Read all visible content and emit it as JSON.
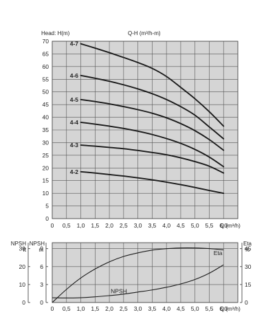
{
  "chart_data": [
    {
      "type": "line",
      "title": "Q-H (m³/h-m)",
      "ylabel": "Head: H(m)",
      "xlabel": "Q (m³/h)",
      "xlim": [
        0,
        6.5
      ],
      "ylim": [
        0,
        70
      ],
      "grid": true,
      "x_ticks": [
        "0",
        "0,5",
        "1,0",
        "1,5",
        "2,0",
        "2,5",
        "3,0",
        "3,5",
        "4,0",
        "4,5",
        "5,0",
        "5,5",
        "6,0"
      ],
      "y_ticks": [
        "0",
        "5",
        "10",
        "15",
        "20",
        "25",
        "30",
        "35",
        "40",
        "45",
        "50",
        "55",
        "60",
        "65",
        "70"
      ],
      "series": [
        {
          "name": "4-7",
          "x": [
            1.0,
            1.5,
            2.0,
            2.5,
            3.0,
            3.5,
            4.0,
            4.5,
            5.0,
            5.5,
            6.0
          ],
          "y": [
            69,
            67.3,
            65.5,
            63.6,
            61.6,
            59.3,
            56.1,
            51.8,
            47.3,
            42.2,
            36.5
          ]
        },
        {
          "name": "4-6",
          "x": [
            1.0,
            1.5,
            2.0,
            2.5,
            3.0,
            3.5,
            4.0,
            4.5,
            5.0,
            5.5,
            6.0
          ],
          "y": [
            56.5,
            55.4,
            54.2,
            52.8,
            51.2,
            49.3,
            47.0,
            44.2,
            40.8,
            36.2,
            31.5
          ]
        },
        {
          "name": "4-5",
          "x": [
            1.0,
            1.5,
            2.0,
            2.5,
            3.0,
            3.5,
            4.0,
            4.5,
            5.0,
            5.5,
            6.0
          ],
          "y": [
            47.0,
            46.2,
            45.3,
            44.2,
            43.0,
            41.6,
            39.8,
            37.5,
            34.7,
            31.2,
            27.0
          ]
        },
        {
          "name": "4-4",
          "x": [
            1.0,
            1.5,
            2.0,
            2.5,
            3.0,
            3.5,
            4.0,
            4.5,
            5.0,
            5.5,
            6.0
          ],
          "y": [
            38.0,
            37.3,
            36.5,
            35.6,
            34.5,
            33.2,
            31.6,
            29.7,
            27.3,
            24.3,
            20.5
          ]
        },
        {
          "name": "4-3",
          "x": [
            1.0,
            1.5,
            2.0,
            2.5,
            3.0,
            3.5,
            4.0,
            4.5,
            5.0,
            5.5,
            6.0
          ],
          "y": [
            29.0,
            28.6,
            28.1,
            27.6,
            26.9,
            26.1,
            25.2,
            24.0,
            22.5,
            20.7,
            18.0
          ]
        },
        {
          "name": "4-2",
          "x": [
            1.0,
            1.5,
            2.0,
            2.5,
            3.0,
            3.5,
            4.0,
            4.5,
            5.0,
            5.5,
            6.0
          ],
          "y": [
            18.5,
            18.0,
            17.4,
            16.8,
            16.1,
            15.3,
            14.4,
            13.4,
            12.3,
            11.1,
            10.0
          ]
        }
      ]
    },
    {
      "type": "line",
      "xlabel": "Q (m³/h)",
      "xlim": [
        0,
        6.5
      ],
      "grid": true,
      "x_ticks": [
        "0",
        "0,5",
        "1,0",
        "1,5",
        "2,0",
        "2,5",
        "3,0",
        "3,5",
        "4,0",
        "4,5",
        "5,0",
        "5,5",
        "6,0"
      ],
      "left_axis_m": {
        "label_top": "NPSH",
        "label_unit": "m",
        "ticks": [
          "0",
          "3",
          "6",
          "9"
        ],
        "ylim": [
          0,
          10
        ]
      },
      "left_axis_ft": {
        "label_top": "NPSH",
        "label_unit": "ft",
        "ticks": [
          "0",
          "10",
          "20",
          "30"
        ]
      },
      "right_axis": {
        "label_top": "Eta",
        "label_unit": "%",
        "ticks": [
          "0",
          "15",
          "30",
          "45"
        ],
        "ylim": [
          0,
          50
        ]
      },
      "series": [
        {
          "name": "Eta",
          "axis": "right",
          "x": [
            0.0,
            0.5,
            1.0,
            1.5,
            2.0,
            2.5,
            3.0,
            3.5,
            4.0,
            4.5,
            5.0,
            5.5,
            6.0
          ],
          "y": [
            0,
            11,
            20.5,
            28,
            34,
            38.5,
            41.5,
            43.8,
            45,
            45.6,
            45.6,
            45.1,
            44
          ]
        },
        {
          "name": "NPSH",
          "axis": "left",
          "x": [
            0.0,
            0.5,
            1.0,
            1.5,
            2.0,
            2.5,
            3.0,
            3.5,
            4.0,
            4.5,
            5.0,
            5.5,
            6.0
          ],
          "y": [
            0.8,
            0.75,
            0.8,
            0.95,
            1.15,
            1.4,
            1.75,
            2.1,
            2.55,
            3.1,
            3.85,
            4.9,
            6.3
          ]
        }
      ]
    }
  ]
}
